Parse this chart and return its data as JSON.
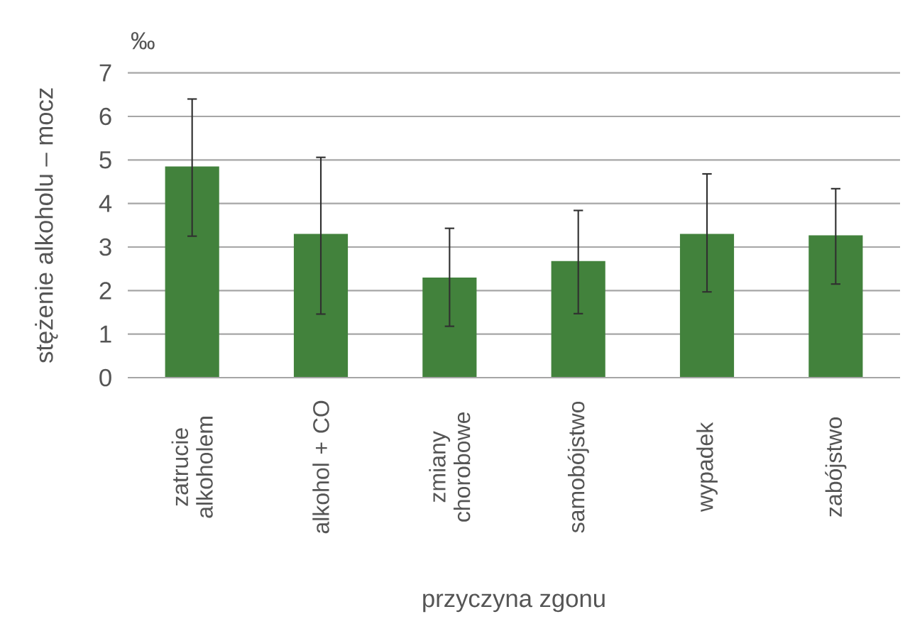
{
  "chart_data": {
    "type": "bar",
    "ylabel": "stężenie alkoholu – mocz",
    "xlabel": "przyczyna zgonu",
    "annotations": [
      "‰"
    ],
    "categories": [
      "zatrucie alkoholem",
      "alkohol + CO",
      "zmiany chorobowe",
      "samobójstwo",
      "wypadek",
      "zabójstwo"
    ],
    "values": [
      4.85,
      3.3,
      2.3,
      2.68,
      3.3,
      3.27
    ],
    "errors": [
      [
        3.25,
        6.4
      ],
      [
        1.46,
        5.06
      ],
      [
        1.18,
        3.43
      ],
      [
        1.47,
        3.84
      ],
      [
        1.97,
        4.68
      ],
      [
        2.15,
        4.34
      ]
    ],
    "color": "#42823c",
    "ylim": [
      0,
      7
    ],
    "yticks": [
      0,
      1,
      2,
      3,
      4,
      5,
      6,
      7
    ],
    "grid": "y"
  }
}
